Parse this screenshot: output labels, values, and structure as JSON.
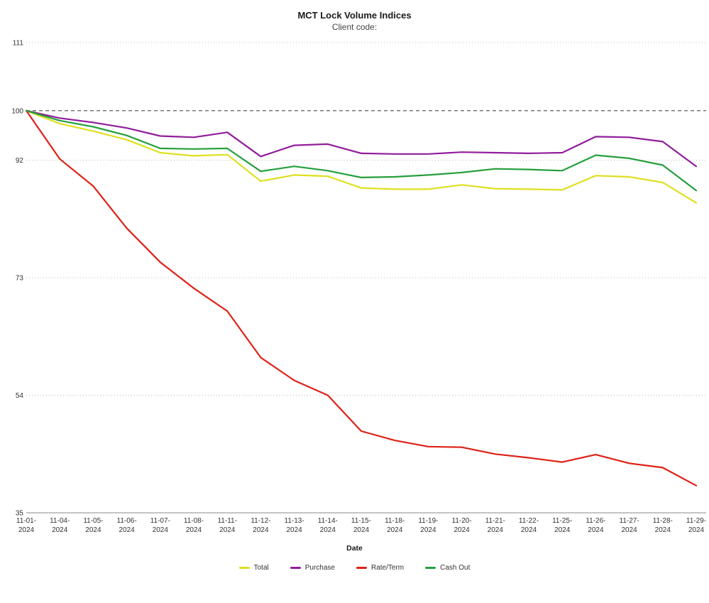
{
  "title": "MCT Lock Volume Indices",
  "subtitle": "Client code:",
  "chart_data": {
    "type": "line",
    "title": "MCT Lock Volume Indices",
    "subtitle": "Client code:",
    "xlabel": "Date",
    "x": [
      "11-01-2024",
      "11-04-2024",
      "11-05-2024",
      "11-06-2024",
      "11-07-2024",
      "11-08-2024",
      "11-11-2024",
      "11-12-2024",
      "11-13-2024",
      "11-14-2024",
      "11-15-2024",
      "11-18-2024",
      "11-19-2024",
      "11-20-2024",
      "11-21-2024",
      "11-22-2024",
      "11-25-2024",
      "11-26-2024",
      "11-27-2024",
      "11-28-2024",
      "11-29-2024"
    ],
    "series": [
      {
        "name": "Total",
        "color": "#dfdf20",
        "values": [
          100,
          97.9,
          96.7,
          95.3,
          93.2,
          92.7,
          92.9,
          88.6,
          89.6,
          89.4,
          87.5,
          87.3,
          87.3,
          88.0,
          87.4,
          87.3,
          87.2,
          89.5,
          89.3,
          88.4,
          85.1
        ]
      },
      {
        "name": "Purchase",
        "color": "#911d9b",
        "values": [
          100,
          98.8,
          98.1,
          97.2,
          95.9,
          95.7,
          96.5,
          92.6,
          94.4,
          94.6,
          93.1,
          93.0,
          93.0,
          93.3,
          93.2,
          93.1,
          93.2,
          95.8,
          95.7,
          95.0,
          91.0
        ]
      },
      {
        "name": "Rate/Term",
        "color": "#df2117",
        "values": [
          100,
          92.2,
          87.8,
          81.0,
          75.5,
          71.3,
          67.6,
          60.1,
          56.4,
          54.0,
          48.2,
          46.7,
          45.7,
          45.6,
          44.5,
          43.9,
          43.2,
          44.4,
          43.0,
          42.3,
          39.4
        ]
      },
      {
        "name": "Cash Out",
        "color": "#259f3c",
        "values": [
          100,
          98.4,
          97.4,
          96.0,
          93.9,
          93.8,
          93.9,
          90.2,
          91.0,
          90.3,
          89.2,
          89.3,
          89.6,
          90.0,
          90.6,
          90.5,
          90.3,
          92.8,
          92.3,
          91.2,
          87.1
        ]
      }
    ],
    "yticks": [
      35,
      54,
      73,
      92,
      100,
      111
    ],
    "ylim": [
      35,
      111
    ],
    "baseline_value": 100,
    "grid": "horizontal-only",
    "gridline_styles": {
      "100": "dashed-dark",
      "others": "dotted-light",
      "35": "solid-axis"
    },
    "legend_position": "bottom"
  }
}
